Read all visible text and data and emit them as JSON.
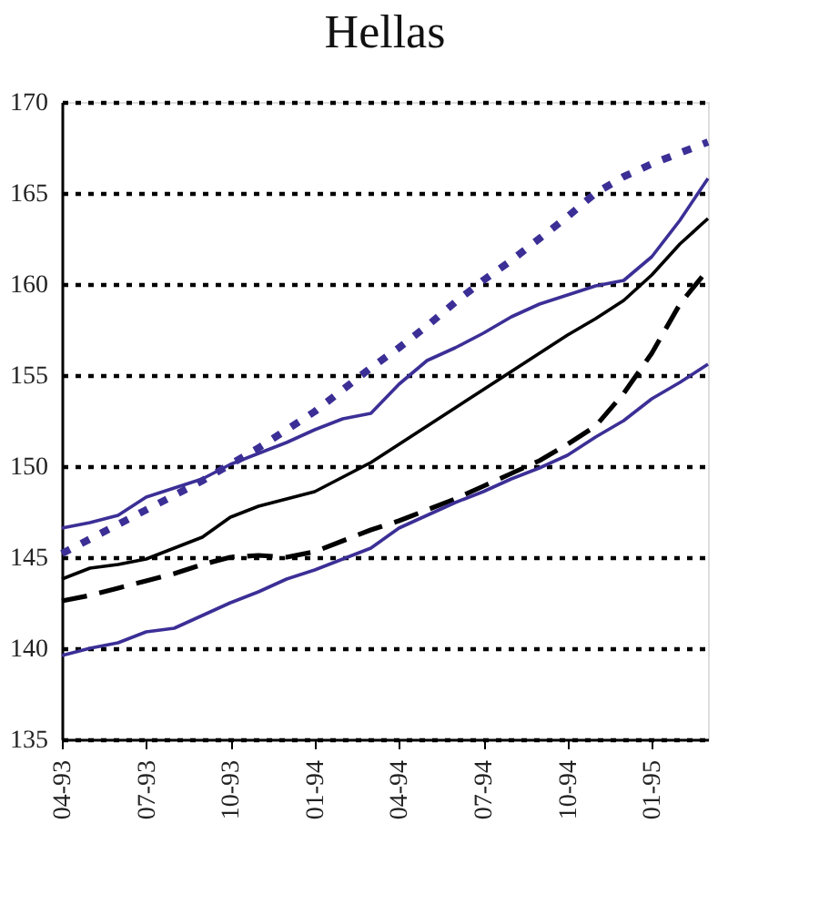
{
  "chart_data": {
    "type": "line",
    "title": "Hellas",
    "categories": [
      "04-93",
      null,
      null,
      "07-93",
      null,
      null,
      "10-93",
      null,
      null,
      "01-94",
      null,
      null,
      "04-94",
      null,
      null,
      "07-94",
      null,
      null,
      "10-94",
      null,
      null,
      "01-95",
      null,
      null
    ],
    "ylim": [
      135,
      170
    ],
    "yticks": [
      135,
      140,
      145,
      150,
      155,
      160,
      165,
      170
    ],
    "grid": "y",
    "series": [
      {
        "color": "#3b2f96",
        "line_style": "solid",
        "values": [
          146.6,
          146.9,
          147.3,
          148.3,
          148.8,
          149.3,
          150.1,
          150.7,
          151.3,
          152.0,
          152.6,
          152.9,
          154.5,
          155.8,
          156.5,
          157.3,
          158.2,
          158.9,
          159.4,
          159.9,
          160.2,
          161.5,
          163.5,
          165.8
        ]
      },
      {
        "color": "#3b2f96",
        "line_style": "dotted",
        "values": [
          145.2,
          146.0,
          146.8,
          147.6,
          148.4,
          149.2,
          150.1,
          151.0,
          152.0,
          153.0,
          154.2,
          155.4,
          156.5,
          157.7,
          159.0,
          160.2,
          161.3,
          162.5,
          163.7,
          165.0,
          165.9,
          166.6,
          167.2,
          167.8
        ]
      },
      {
        "color": "#000000",
        "line_style": "solid",
        "values": [
          143.8,
          144.4,
          144.6,
          144.9,
          145.5,
          146.1,
          147.2,
          147.8,
          148.2,
          148.6,
          149.4,
          150.2,
          151.2,
          152.2,
          153.2,
          154.2,
          155.2,
          156.2,
          157.2,
          158.1,
          159.1,
          160.5,
          162.2,
          163.6
        ]
      },
      {
        "color": "#000000",
        "line_style": "dashed",
        "values": [
          142.6,
          142.9,
          143.3,
          143.7,
          144.1,
          144.6,
          145.0,
          145.1,
          145.0,
          145.3,
          145.9,
          146.5,
          147.0,
          147.6,
          148.2,
          148.9,
          149.6,
          150.3,
          151.2,
          152.2,
          154.0,
          156.2,
          158.9,
          160.8
        ]
      },
      {
        "color": "#3b2f96",
        "line_style": "solid",
        "values": [
          139.6,
          140.0,
          140.3,
          140.9,
          141.1,
          141.8,
          142.5,
          143.1,
          143.8,
          144.3,
          144.9,
          145.5,
          146.6,
          147.3,
          148.0,
          148.6,
          149.3,
          149.9,
          150.6,
          151.6,
          152.5,
          153.7,
          154.6,
          155.6
        ]
      }
    ]
  }
}
